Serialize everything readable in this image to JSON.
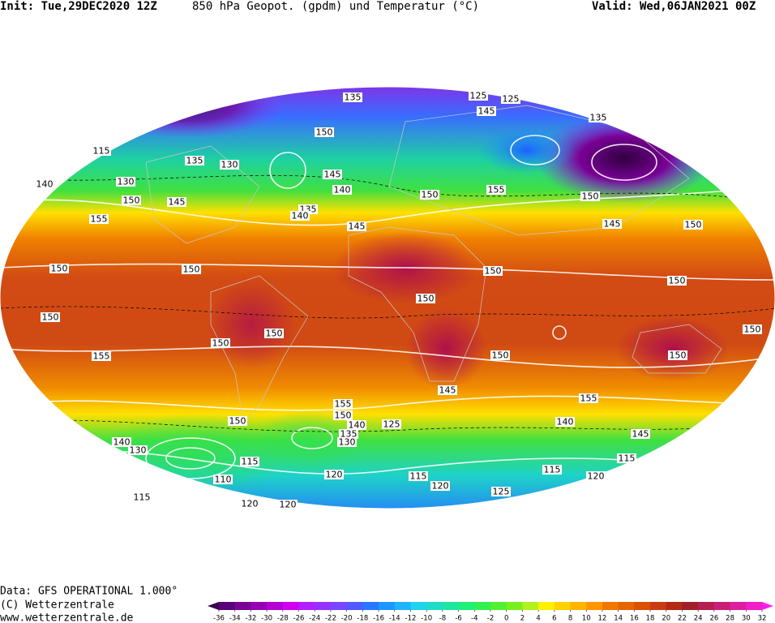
{
  "header": {
    "init": "Init: Tue,29DEC2020 12Z",
    "title": "850 hPa Geopot. (gpdm) und Temperatur (°C)",
    "valid": "Valid: Wed,06JAN2021 00Z"
  },
  "footer": {
    "data": "Data: GFS OPERATIONAL 1.000°",
    "copyright": "(C) Wetterzentrale",
    "url": "www.wetterzentrale.de"
  },
  "map": {
    "contour_labels": [
      135,
      125,
      125,
      145,
      135,
      115,
      135,
      130,
      150,
      145,
      140,
      130,
      140,
      150,
      145,
      135,
      140,
      145,
      150,
      155,
      150,
      145,
      150,
      155,
      150,
      150,
      150,
      150,
      150,
      150,
      150,
      150,
      150,
      150,
      150,
      155,
      145,
      155,
      155,
      150,
      140,
      135,
      130,
      125,
      150,
      140,
      145,
      115,
      115,
      120,
      110,
      115,
      120,
      115,
      120,
      125,
      115,
      120,
      120,
      140,
      130
    ]
  },
  "colorbar": {
    "ticks": [
      -36,
      -34,
      -32,
      -30,
      -28,
      -26,
      -24,
      -22,
      -20,
      -18,
      -16,
      -14,
      -12,
      -10,
      -8,
      -6,
      -4,
      -2,
      0,
      2,
      4,
      6,
      8,
      10,
      12,
      14,
      16,
      18,
      20,
      22,
      24,
      26,
      28,
      30,
      32
    ],
    "colors": [
      "#3a0050",
      "#5a0078",
      "#7a0096",
      "#9600b4",
      "#b400d2",
      "#d200f0",
      "#b41eff",
      "#9632ff",
      "#7846ff",
      "#505aff",
      "#2878ff",
      "#1e96ff",
      "#1eb4ff",
      "#1ed2f0",
      "#1edcc8",
      "#1ee6a0",
      "#1ef078",
      "#32f050",
      "#50f032",
      "#78f01e",
      "#b4f01e",
      "#fff000",
      "#ffd200",
      "#ffb400",
      "#ff9600",
      "#f07800",
      "#e66400",
      "#dc5000",
      "#c83c14",
      "#b42814",
      "#a01e28",
      "#b41e50",
      "#c81e78",
      "#dc1ea0",
      "#f01ec8",
      "#ff1ef0"
    ]
  }
}
